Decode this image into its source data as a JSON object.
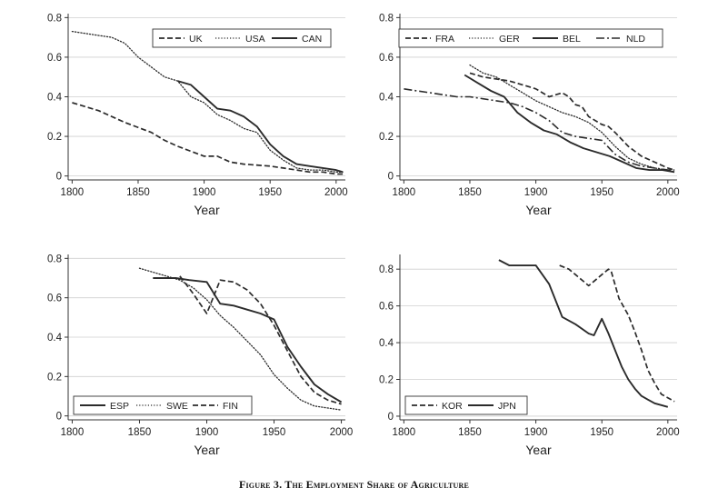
{
  "figure": {
    "caption": "Figure 3. The Employment Share of Agriculture"
  },
  "chart_data": [
    {
      "type": "line",
      "panel": "top-left",
      "xlabel": "Year",
      "ylabel": "",
      "xlim": [
        1797,
        2007
      ],
      "ylim": [
        -0.02,
        0.82
      ],
      "xticks": [
        1800,
        1850,
        1900,
        1950,
        2000
      ],
      "yticks": [
        0,
        0.2,
        0.4,
        0.6,
        0.8
      ],
      "ytick_labels": [
        "0",
        "0.2",
        "0.4",
        "0.6",
        "0.8"
      ],
      "grid": "horizontal",
      "legend": {
        "placement": "top-right",
        "columns": 3
      },
      "series": [
        {
          "name": "UK",
          "style": "dashed",
          "x": [
            1800,
            1820,
            1840,
            1860,
            1870,
            1880,
            1900,
            1910,
            1920,
            1930,
            1950,
            1960,
            1970,
            1980,
            1990,
            2000,
            2005
          ],
          "y": [
            0.37,
            0.33,
            0.27,
            0.22,
            0.18,
            0.15,
            0.1,
            0.1,
            0.07,
            0.06,
            0.05,
            0.04,
            0.03,
            0.02,
            0.02,
            0.01,
            0.01
          ]
        },
        {
          "name": "USA",
          "style": "dotted",
          "x": [
            1800,
            1810,
            1820,
            1830,
            1840,
            1850,
            1860,
            1870,
            1880,
            1890,
            1900,
            1910,
            1920,
            1930,
            1940,
            1950,
            1960,
            1970,
            1980,
            1990,
            2000,
            2005
          ],
          "y": [
            0.73,
            0.72,
            0.71,
            0.7,
            0.67,
            0.6,
            0.55,
            0.5,
            0.48,
            0.4,
            0.37,
            0.31,
            0.28,
            0.24,
            0.22,
            0.13,
            0.08,
            0.04,
            0.03,
            0.03,
            0.02,
            0.02
          ]
        },
        {
          "name": "CAN",
          "style": "solid",
          "x": [
            1880,
            1890,
            1900,
            1910,
            1920,
            1930,
            1940,
            1950,
            1960,
            1970,
            1980,
            1990,
            2000,
            2005
          ],
          "y": [
            0.48,
            0.46,
            0.4,
            0.34,
            0.33,
            0.3,
            0.25,
            0.16,
            0.1,
            0.06,
            0.05,
            0.04,
            0.03,
            0.02
          ]
        }
      ]
    },
    {
      "type": "line",
      "panel": "top-right",
      "xlabel": "Year",
      "ylabel": "",
      "xlim": [
        1797,
        2007
      ],
      "ylim": [
        -0.02,
        0.82
      ],
      "xticks": [
        1800,
        1850,
        1900,
        1950,
        2000
      ],
      "yticks": [
        0,
        0.2,
        0.4,
        0.6,
        0.8
      ],
      "ytick_labels": [
        "0",
        "0.2",
        "0.4",
        "0.6",
        "0.8"
      ],
      "grid": "horizontal",
      "legend": {
        "placement": "top-right",
        "columns": 4
      },
      "series": [
        {
          "name": "FRA",
          "style": "dashed",
          "x": [
            1850,
            1860,
            1870,
            1880,
            1890,
            1900,
            1905,
            1910,
            1915,
            1920,
            1925,
            1930,
            1935,
            1940,
            1950,
            1955,
            1960,
            1970,
            1980,
            1990,
            2000,
            2005
          ],
          "y": [
            0.52,
            0.5,
            0.49,
            0.48,
            0.46,
            0.44,
            0.42,
            0.4,
            0.41,
            0.42,
            0.4,
            0.36,
            0.35,
            0.3,
            0.26,
            0.25,
            0.22,
            0.15,
            0.1,
            0.07,
            0.04,
            0.03
          ]
        },
        {
          "name": "GER",
          "style": "dotted",
          "x": [
            1850,
            1860,
            1870,
            1880,
            1890,
            1900,
            1910,
            1920,
            1930,
            1940,
            1950,
            1960,
            1970,
            1980,
            1990,
            2000,
            2005
          ],
          "y": [
            0.56,
            0.52,
            0.5,
            0.46,
            0.42,
            0.38,
            0.35,
            0.32,
            0.3,
            0.27,
            0.22,
            0.15,
            0.09,
            0.06,
            0.04,
            0.03,
            0.02
          ]
        },
        {
          "name": "BEL",
          "style": "solid",
          "x": [
            1846,
            1856,
            1866,
            1876,
            1886,
            1896,
            1906,
            1916,
            1926,
            1936,
            1946,
            1956,
            1966,
            1976,
            1986,
            1996,
            2005
          ],
          "y": [
            0.51,
            0.47,
            0.43,
            0.4,
            0.32,
            0.27,
            0.23,
            0.21,
            0.17,
            0.14,
            0.12,
            0.1,
            0.07,
            0.04,
            0.03,
            0.03,
            0.02
          ]
        },
        {
          "name": "NLD",
          "style": "dashdot",
          "x": [
            1800,
            1810,
            1820,
            1830,
            1840,
            1850,
            1860,
            1870,
            1880,
            1890,
            1900,
            1910,
            1920,
            1930,
            1940,
            1950,
            1960,
            1970,
            1980,
            1990,
            2000,
            2005
          ],
          "y": [
            0.44,
            0.43,
            0.42,
            0.41,
            0.4,
            0.4,
            0.39,
            0.38,
            0.37,
            0.35,
            0.32,
            0.28,
            0.22,
            0.2,
            0.19,
            0.18,
            0.11,
            0.07,
            0.05,
            0.04,
            0.03,
            0.03
          ]
        }
      ]
    },
    {
      "type": "line",
      "panel": "bottom-left",
      "xlabel": "Year",
      "ylabel": "",
      "xlim": [
        1797,
        2003
      ],
      "ylim": [
        -0.02,
        0.82
      ],
      "xticks": [
        1800,
        1850,
        1900,
        1950,
        2000
      ],
      "yticks": [
        0,
        0.2,
        0.4,
        0.6,
        0.8
      ],
      "ytick_labels": [
        "0",
        "0.2",
        "0.4",
        "0.6",
        "0.8"
      ],
      "grid": "horizontal",
      "legend": {
        "placement": "bottom-left",
        "columns": 3
      },
      "series": [
        {
          "name": "ESP",
          "style": "solid",
          "x": [
            1860,
            1877,
            1887,
            1900,
            1910,
            1920,
            1930,
            1940,
            1950,
            1960,
            1970,
            1980,
            1990,
            2000
          ],
          "y": [
            0.7,
            0.7,
            0.69,
            0.68,
            0.57,
            0.56,
            0.54,
            0.52,
            0.49,
            0.35,
            0.25,
            0.16,
            0.11,
            0.07
          ]
        },
        {
          "name": "SWE",
          "style": "dotted",
          "x": [
            1850,
            1860,
            1870,
            1880,
            1890,
            1900,
            1910,
            1920,
            1930,
            1940,
            1950,
            1960,
            1970,
            1980,
            1990,
            2000
          ],
          "y": [
            0.75,
            0.73,
            0.71,
            0.69,
            0.65,
            0.59,
            0.51,
            0.45,
            0.38,
            0.31,
            0.21,
            0.14,
            0.08,
            0.05,
            0.04,
            0.03
          ]
        },
        {
          "name": "FIN",
          "style": "dashed",
          "x": [
            1880,
            1890,
            1900,
            1910,
            1920,
            1930,
            1940,
            1950,
            1960,
            1970,
            1980,
            1990,
            2000
          ],
          "y": [
            0.71,
            0.62,
            0.52,
            0.69,
            0.68,
            0.64,
            0.57,
            0.46,
            0.33,
            0.2,
            0.12,
            0.08,
            0.06
          ]
        }
      ]
    },
    {
      "type": "line",
      "panel": "bottom-right",
      "xlabel": "Year",
      "ylabel": "",
      "xlim": [
        1797,
        2007
      ],
      "ylim": [
        -0.02,
        0.88
      ],
      "xticks": [
        1800,
        1850,
        1900,
        1950,
        2000
      ],
      "yticks": [
        0,
        0.2,
        0.4,
        0.6,
        0.8
      ],
      "ytick_labels": [
        "0",
        "0.2",
        "0.4",
        "0.6",
        "0.8"
      ],
      "grid": "horizontal",
      "legend": {
        "placement": "bottom-left",
        "columns": 2
      },
      "series": [
        {
          "name": "KOR",
          "style": "dashed",
          "x": [
            1918,
            1925,
            1930,
            1940,
            1945,
            1950,
            1955,
            1957,
            1963,
            1970,
            1975,
            1980,
            1985,
            1990,
            1995,
            2000,
            2005
          ],
          "y": [
            0.82,
            0.8,
            0.77,
            0.71,
            0.74,
            0.77,
            0.8,
            0.79,
            0.64,
            0.55,
            0.46,
            0.36,
            0.25,
            0.18,
            0.12,
            0.1,
            0.08
          ]
        },
        {
          "name": "JPN",
          "style": "solid",
          "x": [
            1872,
            1880,
            1890,
            1900,
            1910,
            1920,
            1930,
            1940,
            1944,
            1950,
            1955,
            1960,
            1965,
            1970,
            1975,
            1980,
            1985,
            1990,
            1995,
            2000
          ],
          "y": [
            0.85,
            0.82,
            0.82,
            0.82,
            0.72,
            0.54,
            0.5,
            0.45,
            0.44,
            0.53,
            0.45,
            0.36,
            0.27,
            0.2,
            0.15,
            0.11,
            0.09,
            0.07,
            0.06,
            0.05
          ]
        }
      ]
    }
  ]
}
